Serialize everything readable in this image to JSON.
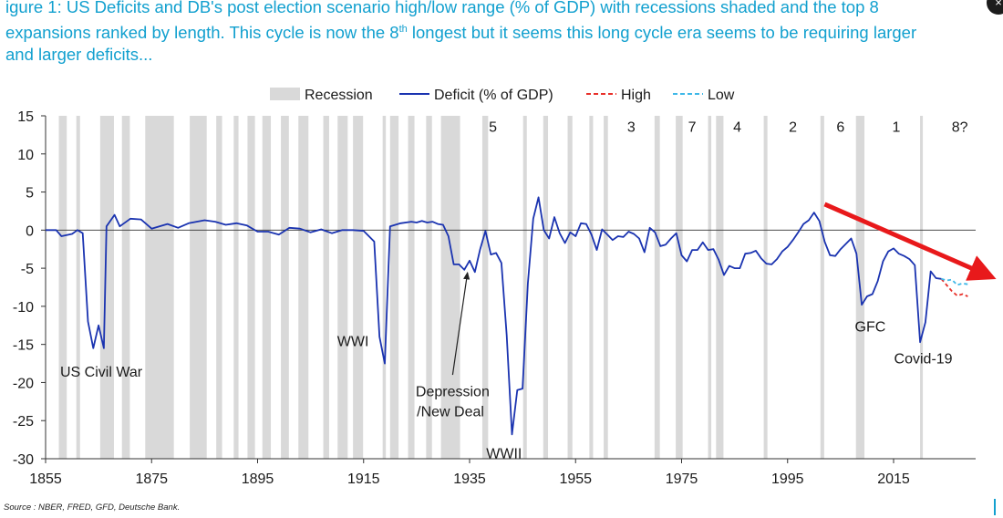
{
  "caption": {
    "line1": "igure 1: US Deficits and DB's post election scenario high/low range (% of GDP) with recessions shaded and the top 8",
    "line2_pre": "expansions ranked by length. This cycle is now the 8",
    "line2_sup": "th",
    "line2_post": " longest but it seems this long cycle era seems to be requiring larger",
    "line3": "and larger deficits..."
  },
  "source": "Source : NBER, FRED, GFD, Deutsche Bank.",
  "close_icon": "×",
  "chart_data": {
    "type": "line",
    "title": "",
    "xlabel": "",
    "ylabel": "",
    "xlim": [
      1855,
      2024
    ],
    "ylim": [
      -30,
      15
    ],
    "x_ticks": [
      1855,
      1875,
      1895,
      1915,
      1935,
      1955,
      1975,
      1995,
      2015
    ],
    "y_ticks": [
      15,
      10,
      5,
      0,
      -5,
      -10,
      -15,
      -20,
      -25,
      -30
    ],
    "legend": {
      "placement": "top",
      "items": [
        {
          "label": "Recession",
          "style": "box",
          "color": "#d9d9d9"
        },
        {
          "label": "Deficit (% of GDP)",
          "style": "solid",
          "color": "#1a33b0"
        },
        {
          "label": "High",
          "style": "dashed",
          "color": "#e8302a"
        },
        {
          "label": "Low",
          "style": "dashed",
          "color": "#3fb8e8"
        }
      ]
    },
    "recessions": [
      [
        1857.5,
        1859
      ],
      [
        1860.8,
        1861.5
      ],
      [
        1865.3,
        1867.9
      ],
      [
        1869.4,
        1870.9
      ],
      [
        1873.8,
        1879.2
      ],
      [
        1882.2,
        1885.4
      ],
      [
        1887.2,
        1888.3
      ],
      [
        1890.5,
        1891.4
      ],
      [
        1893.1,
        1894.5
      ],
      [
        1895.9,
        1897.5
      ],
      [
        1899.4,
        1900.9
      ],
      [
        1902.7,
        1904.6
      ],
      [
        1907.4,
        1908.5
      ],
      [
        1910.1,
        1912
      ],
      [
        1913,
        1914.9
      ],
      [
        1918.6,
        1919.2
      ],
      [
        1920,
        1921.6
      ],
      [
        1923.4,
        1924.6
      ],
      [
        1926.8,
        1927.9
      ],
      [
        1929.6,
        1933.2
      ],
      [
        1937.4,
        1938.5
      ],
      [
        1945.1,
        1945.8
      ],
      [
        1948.9,
        1949.8
      ],
      [
        1953.5,
        1954.4
      ],
      [
        1957.6,
        1958.3
      ],
      [
        1960.3,
        1961.1
      ],
      [
        1969.9,
        1970.9
      ],
      [
        1973.9,
        1975.2
      ],
      [
        1980,
        1980.6
      ],
      [
        1981.5,
        1982.9
      ],
      [
        1990.5,
        1991.2
      ],
      [
        2001.2,
        2001.9
      ],
      [
        2007.9,
        2009.5
      ],
      [
        2020,
        2020.4
      ]
    ],
    "expansion_ranks": [
      {
        "label": "5",
        "x": 1939.4,
        "y_label": 13.6
      },
      {
        "label": "3",
        "x": 1965.5,
        "y_label": 13.6
      },
      {
        "label": "7",
        "x": 1977,
        "y_label": 13.6
      },
      {
        "label": "4",
        "x": 1985.5,
        "y_label": 13.6
      },
      {
        "label": "2",
        "x": 1996,
        "y_label": 13.6
      },
      {
        "label": "6",
        "x": 2005,
        "y_label": 13.6
      },
      {
        "label": "1",
        "x": 2015.5,
        "y_label": 13.6
      },
      {
        "label": "8?",
        "x": 2027.5,
        "y_label": 13.6
      }
    ],
    "series": [
      {
        "name": "Deficit (% of GDP)",
        "color": "#1a33b0",
        "points": [
          [
            1855,
            0
          ],
          [
            1857,
            0
          ],
          [
            1858,
            -0.8
          ],
          [
            1860,
            -0.5
          ],
          [
            1861,
            0
          ],
          [
            1862,
            -0.4
          ],
          [
            1863,
            -12
          ],
          [
            1864,
            -15.5
          ],
          [
            1865,
            -12.5
          ],
          [
            1866,
            -15.5
          ],
          [
            1866.5,
            0.5
          ],
          [
            1868,
            2
          ],
          [
            1869,
            0.5
          ],
          [
            1871,
            1.5
          ],
          [
            1873,
            1.4
          ],
          [
            1875,
            0.2
          ],
          [
            1878,
            0.8
          ],
          [
            1880,
            0.3
          ],
          [
            1882,
            0.9
          ],
          [
            1885,
            1.3
          ],
          [
            1887,
            1.1
          ],
          [
            1889,
            0.7
          ],
          [
            1891,
            0.9
          ],
          [
            1893,
            0.6
          ],
          [
            1895,
            -0.2
          ],
          [
            1897,
            -0.2
          ],
          [
            1899,
            -0.6
          ],
          [
            1901,
            0.3
          ],
          [
            1903,
            0.2
          ],
          [
            1905,
            -0.3
          ],
          [
            1907,
            0.1
          ],
          [
            1909,
            -0.4
          ],
          [
            1911,
            0
          ],
          [
            1913,
            0
          ],
          [
            1915,
            -0.1
          ],
          [
            1917,
            -1.5
          ],
          [
            1918,
            -14
          ],
          [
            1919,
            -17.5
          ],
          [
            1920,
            0.5
          ],
          [
            1922,
            0.9
          ],
          [
            1924,
            1.1
          ],
          [
            1925,
            1
          ],
          [
            1926,
            1.2
          ],
          [
            1927,
            1
          ],
          [
            1928,
            1.1
          ],
          [
            1929,
            0.8
          ],
          [
            1930,
            0.7
          ],
          [
            1931,
            -0.8
          ],
          [
            1932,
            -4.5
          ],
          [
            1933,
            -4.5
          ],
          [
            1934,
            -5.2
          ],
          [
            1935,
            -4
          ],
          [
            1936,
            -5.5
          ],
          [
            1937,
            -2.5
          ],
          [
            1938,
            -0.1
          ],
          [
            1939,
            -3.2
          ],
          [
            1940,
            -3
          ],
          [
            1941,
            -4.3
          ],
          [
            1942,
            -13.8
          ],
          [
            1943,
            -26.8
          ],
          [
            1944,
            -21
          ],
          [
            1945,
            -20.8
          ],
          [
            1946,
            -7
          ],
          [
            1947,
            1.5
          ],
          [
            1948,
            4.3
          ],
          [
            1949,
            0
          ],
          [
            1950,
            -1.1
          ],
          [
            1951,
            1.7
          ],
          [
            1952,
            -0.4
          ],
          [
            1953,
            -1.7
          ],
          [
            1954,
            -0.3
          ],
          [
            1955,
            -0.8
          ],
          [
            1956,
            0.9
          ],
          [
            1957,
            0.8
          ],
          [
            1958,
            -0.6
          ],
          [
            1959,
            -2.6
          ],
          [
            1960,
            0.1
          ],
          [
            1961,
            -0.6
          ],
          [
            1962,
            -1.3
          ],
          [
            1963,
            -0.8
          ],
          [
            1964,
            -0.9
          ],
          [
            1965,
            -0.2
          ],
          [
            1966,
            -0.5
          ],
          [
            1967,
            -1.1
          ],
          [
            1968,
            -2.9
          ],
          [
            1969,
            0.3
          ],
          [
            1970,
            -0.3
          ],
          [
            1971,
            -2.1
          ],
          [
            1972,
            -1.9
          ],
          [
            1973,
            -1.1
          ],
          [
            1974,
            -0.4
          ],
          [
            1975,
            -3.3
          ],
          [
            1976,
            -4.1
          ],
          [
            1977,
            -2.6
          ],
          [
            1978,
            -2.6
          ],
          [
            1979,
            -1.6
          ],
          [
            1980,
            -2.6
          ],
          [
            1981,
            -2.5
          ],
          [
            1982,
            -3.9
          ],
          [
            1983,
            -5.9
          ],
          [
            1984,
            -4.7
          ],
          [
            1985,
            -5
          ],
          [
            1986,
            -5
          ],
          [
            1987,
            -3.1
          ],
          [
            1988,
            -3
          ],
          [
            1989,
            -2.7
          ],
          [
            1990,
            -3.7
          ],
          [
            1991,
            -4.4
          ],
          [
            1992,
            -4.5
          ],
          [
            1993,
            -3.8
          ],
          [
            1994,
            -2.8
          ],
          [
            1995,
            -2.2
          ],
          [
            1996,
            -1.3
          ],
          [
            1997,
            -0.3
          ],
          [
            1998,
            0.8
          ],
          [
            1999,
            1.3
          ],
          [
            2000,
            2.3
          ],
          [
            2001,
            1.2
          ],
          [
            2002,
            -1.5
          ],
          [
            2003,
            -3.3
          ],
          [
            2004,
            -3.4
          ],
          [
            2005,
            -2.5
          ],
          [
            2006,
            -1.8
          ],
          [
            2007,
            -1.1
          ],
          [
            2008,
            -3.1
          ],
          [
            2009,
            -9.8
          ],
          [
            2010,
            -8.7
          ],
          [
            2011,
            -8.4
          ],
          [
            2012,
            -6.7
          ],
          [
            2013,
            -4.1
          ],
          [
            2014,
            -2.8
          ],
          [
            2015,
            -2.4
          ],
          [
            2016,
            -3.1
          ],
          [
            2017,
            -3.4
          ],
          [
            2018,
            -3.8
          ],
          [
            2019,
            -4.6
          ],
          [
            2020,
            -14.7
          ],
          [
            2021,
            -12.1
          ],
          [
            2022,
            -5.4
          ],
          [
            2023,
            -6.3
          ],
          [
            2024,
            -6.4
          ]
        ]
      },
      {
        "name": "High",
        "color": "#e8302a",
        "dashed": true,
        "points": [
          [
            2024,
            -6.4
          ],
          [
            2025,
            -7.2
          ],
          [
            2026,
            -8
          ],
          [
            2027,
            -8.6
          ],
          [
            2028,
            -8.4
          ],
          [
            2029,
            -8.7
          ]
        ]
      },
      {
        "name": "Low",
        "color": "#3fb8e8",
        "dashed": true,
        "points": [
          [
            2024,
            -6.4
          ],
          [
            2025,
            -6.6
          ],
          [
            2026,
            -6.5
          ],
          [
            2027,
            -7.2
          ],
          [
            2028,
            -7
          ],
          [
            2029,
            -7.1
          ]
        ]
      }
    ],
    "annotations": [
      {
        "text": "US Civil War",
        "x": 1865.5,
        "y": -18.5
      },
      {
        "text": "WWI",
        "x": 1913,
        "y": -14.5
      },
      {
        "text": "Depression",
        "x": 1931.8,
        "y": -21.1
      },
      {
        "text": "/New Deal",
        "x": 1931.4,
        "y": -23.7
      },
      {
        "text": "WWII",
        "x": 1941.5,
        "y": -29.2
      },
      {
        "text": "GFC",
        "x": 2010.6,
        "y": -12.6
      },
      {
        "text": "Covid-19",
        "x": 2020.6,
        "y": -16.8
      }
    ],
    "pointer_arrow": {
      "from": [
        1931.8,
        -19
      ],
      "to": [
        1934.6,
        -5.6
      ],
      "color": "#222222"
    },
    "trend_arrow": {
      "from": [
        2002,
        3.4
      ],
      "to": [
        2032,
        -5.7
      ],
      "color": "#e8191b"
    }
  }
}
